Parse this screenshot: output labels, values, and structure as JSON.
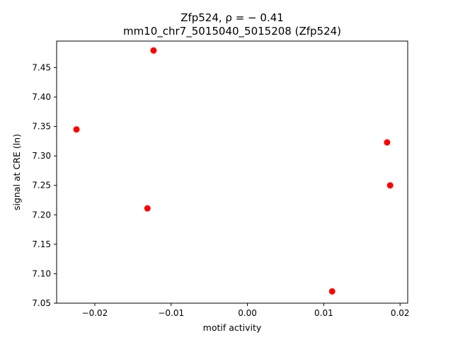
{
  "chart_data": {
    "type": "scatter",
    "title_line1": "Zfp524, ρ = − 0.41",
    "title_line2": "mm10_chr7_5015040_5015208 (Zfp524)",
    "xlabel": "motif activity",
    "ylabel": "signal at CRE (ln)",
    "xlim": [
      -0.025,
      0.021
    ],
    "ylim": [
      7.05,
      7.495
    ],
    "xticks": [
      -0.02,
      -0.01,
      0.0,
      0.01,
      0.02
    ],
    "xtick_labels": [
      "−0.02",
      "−0.01",
      "0.00",
      "0.01",
      "0.02"
    ],
    "yticks": [
      7.05,
      7.1,
      7.15,
      7.2,
      7.25,
      7.3,
      7.35,
      7.4,
      7.45
    ],
    "ytick_labels": [
      "7.05",
      "7.10",
      "7.15",
      "7.20",
      "7.25",
      "7.30",
      "7.35",
      "7.40",
      "7.45"
    ],
    "grid": false,
    "marker_color": "#ff0000",
    "points": [
      {
        "x": -0.0224,
        "y": 7.345
      },
      {
        "x": -0.0123,
        "y": 7.479
      },
      {
        "x": -0.0131,
        "y": 7.211
      },
      {
        "x": 0.0111,
        "y": 7.07
      },
      {
        "x": 0.0183,
        "y": 7.323
      },
      {
        "x": 0.0187,
        "y": 7.25
      }
    ]
  }
}
